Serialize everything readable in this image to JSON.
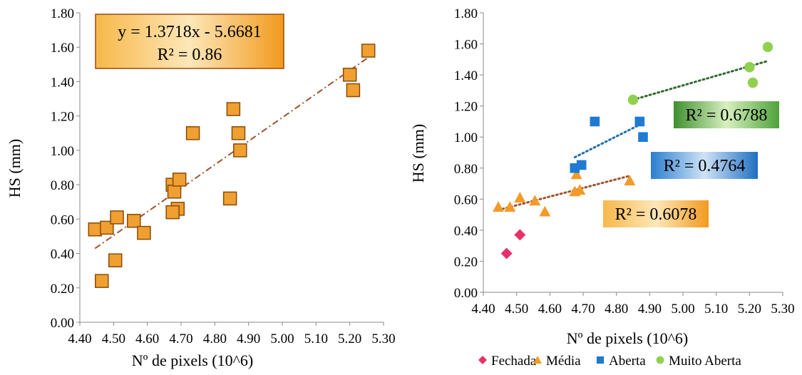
{
  "chart_data": [
    {
      "type": "scatter",
      "xlabel": "Nº de pixels (10^6)",
      "ylabel": "HS (mm)",
      "xlim": [
        4.4,
        5.3
      ],
      "ylim": [
        0.0,
        1.8
      ],
      "x_ticks": [
        "4.40",
        "4.50",
        "4.60",
        "4.70",
        "4.80",
        "4.90",
        "5.00",
        "5.10",
        "5.20",
        "5.30"
      ],
      "y_ticks": [
        "0.00",
        "0.20",
        "0.40",
        "0.60",
        "0.80",
        "1.00",
        "1.20",
        "1.40",
        "1.60",
        "1.80"
      ],
      "grid": false,
      "marker_color": "#f0a030",
      "marker_edge": "#8a4a0a",
      "trend_color": "#a0522d",
      "series": [
        {
          "x": [
            4.445,
            4.48,
            4.51,
            4.56,
            4.59,
            4.465,
            4.505,
            4.675,
            4.68,
            4.69,
            4.695,
            4.675,
            4.735,
            4.845,
            4.855,
            4.87,
            4.875,
            5.2,
            5.21,
            5.255
          ],
          "y": [
            0.54,
            0.55,
            0.61,
            0.59,
            0.52,
            0.24,
            0.36,
            0.8,
            0.76,
            0.66,
            0.83,
            0.64,
            1.1,
            0.72,
            1.24,
            1.1,
            1.0,
            1.44,
            1.35,
            1.58
          ]
        }
      ],
      "trendline": {
        "slope": 1.3718,
        "intercept": -5.6681,
        "x_range": [
          4.445,
          5.255
        ]
      },
      "equation_label": "y = 1.3718x - 5.6681",
      "r2_label": "R² = 0.86"
    },
    {
      "type": "scatter",
      "xlabel": "Nº de pixels (10^6)",
      "ylabel": "HS (mm)",
      "xlim": [
        4.4,
        5.3
      ],
      "ylim": [
        0.0,
        1.8
      ],
      "x_ticks": [
        "4.40",
        "4.50",
        "4.60",
        "4.70",
        "4.80",
        "4.90",
        "5.00",
        "5.10",
        "5.20",
        "5.30"
      ],
      "y_ticks": [
        "0.00",
        "0.20",
        "0.40",
        "0.60",
        "0.80",
        "1.00",
        "1.20",
        "1.40",
        "1.60",
        "1.80"
      ],
      "grid": false,
      "legend_position": "bottom",
      "series": [
        {
          "name": "Fechada",
          "marker": "diamond",
          "color": "#e8306a",
          "x": [
            4.47,
            4.51
          ],
          "y": [
            0.25,
            0.37
          ]
        },
        {
          "name": "Média",
          "marker": "triangle",
          "color": "#f39a28",
          "x": [
            4.445,
            4.48,
            4.51,
            4.555,
            4.585,
            4.675,
            4.68,
            4.69,
            4.84
          ],
          "y": [
            0.55,
            0.55,
            0.61,
            0.59,
            0.52,
            0.65,
            0.76,
            0.66,
            0.72
          ],
          "trend": {
            "x_range": [
              4.445,
              4.84
            ],
            "y_range": [
              0.53,
              0.75
            ],
            "color": "#a0522d",
            "r2": "R² = 0.6078"
          }
        },
        {
          "name": "Aberta",
          "marker": "square",
          "color": "#1f7ad1",
          "x": [
            4.675,
            4.695,
            4.735,
            4.87,
            4.88
          ],
          "y": [
            0.8,
            0.82,
            1.1,
            1.1,
            1.0
          ],
          "trend": {
            "x_range": [
              4.675,
              4.88
            ],
            "y_range": [
              0.87,
              1.09
            ],
            "color": "#1f6fb0",
            "r2": "R² = 0.4764"
          }
        },
        {
          "name": "Muito Aberta",
          "marker": "circle",
          "color": "#8fd14f",
          "x": [
            4.85,
            5.2,
            5.21,
            5.255
          ],
          "y": [
            1.24,
            1.45,
            1.35,
            1.58
          ],
          "trend": {
            "x_range": [
              4.85,
              5.255
            ],
            "y_range": [
              1.24,
              1.49
            ],
            "color": "#2e6b2e",
            "r2": "R² = 0.6788"
          }
        }
      ]
    }
  ]
}
